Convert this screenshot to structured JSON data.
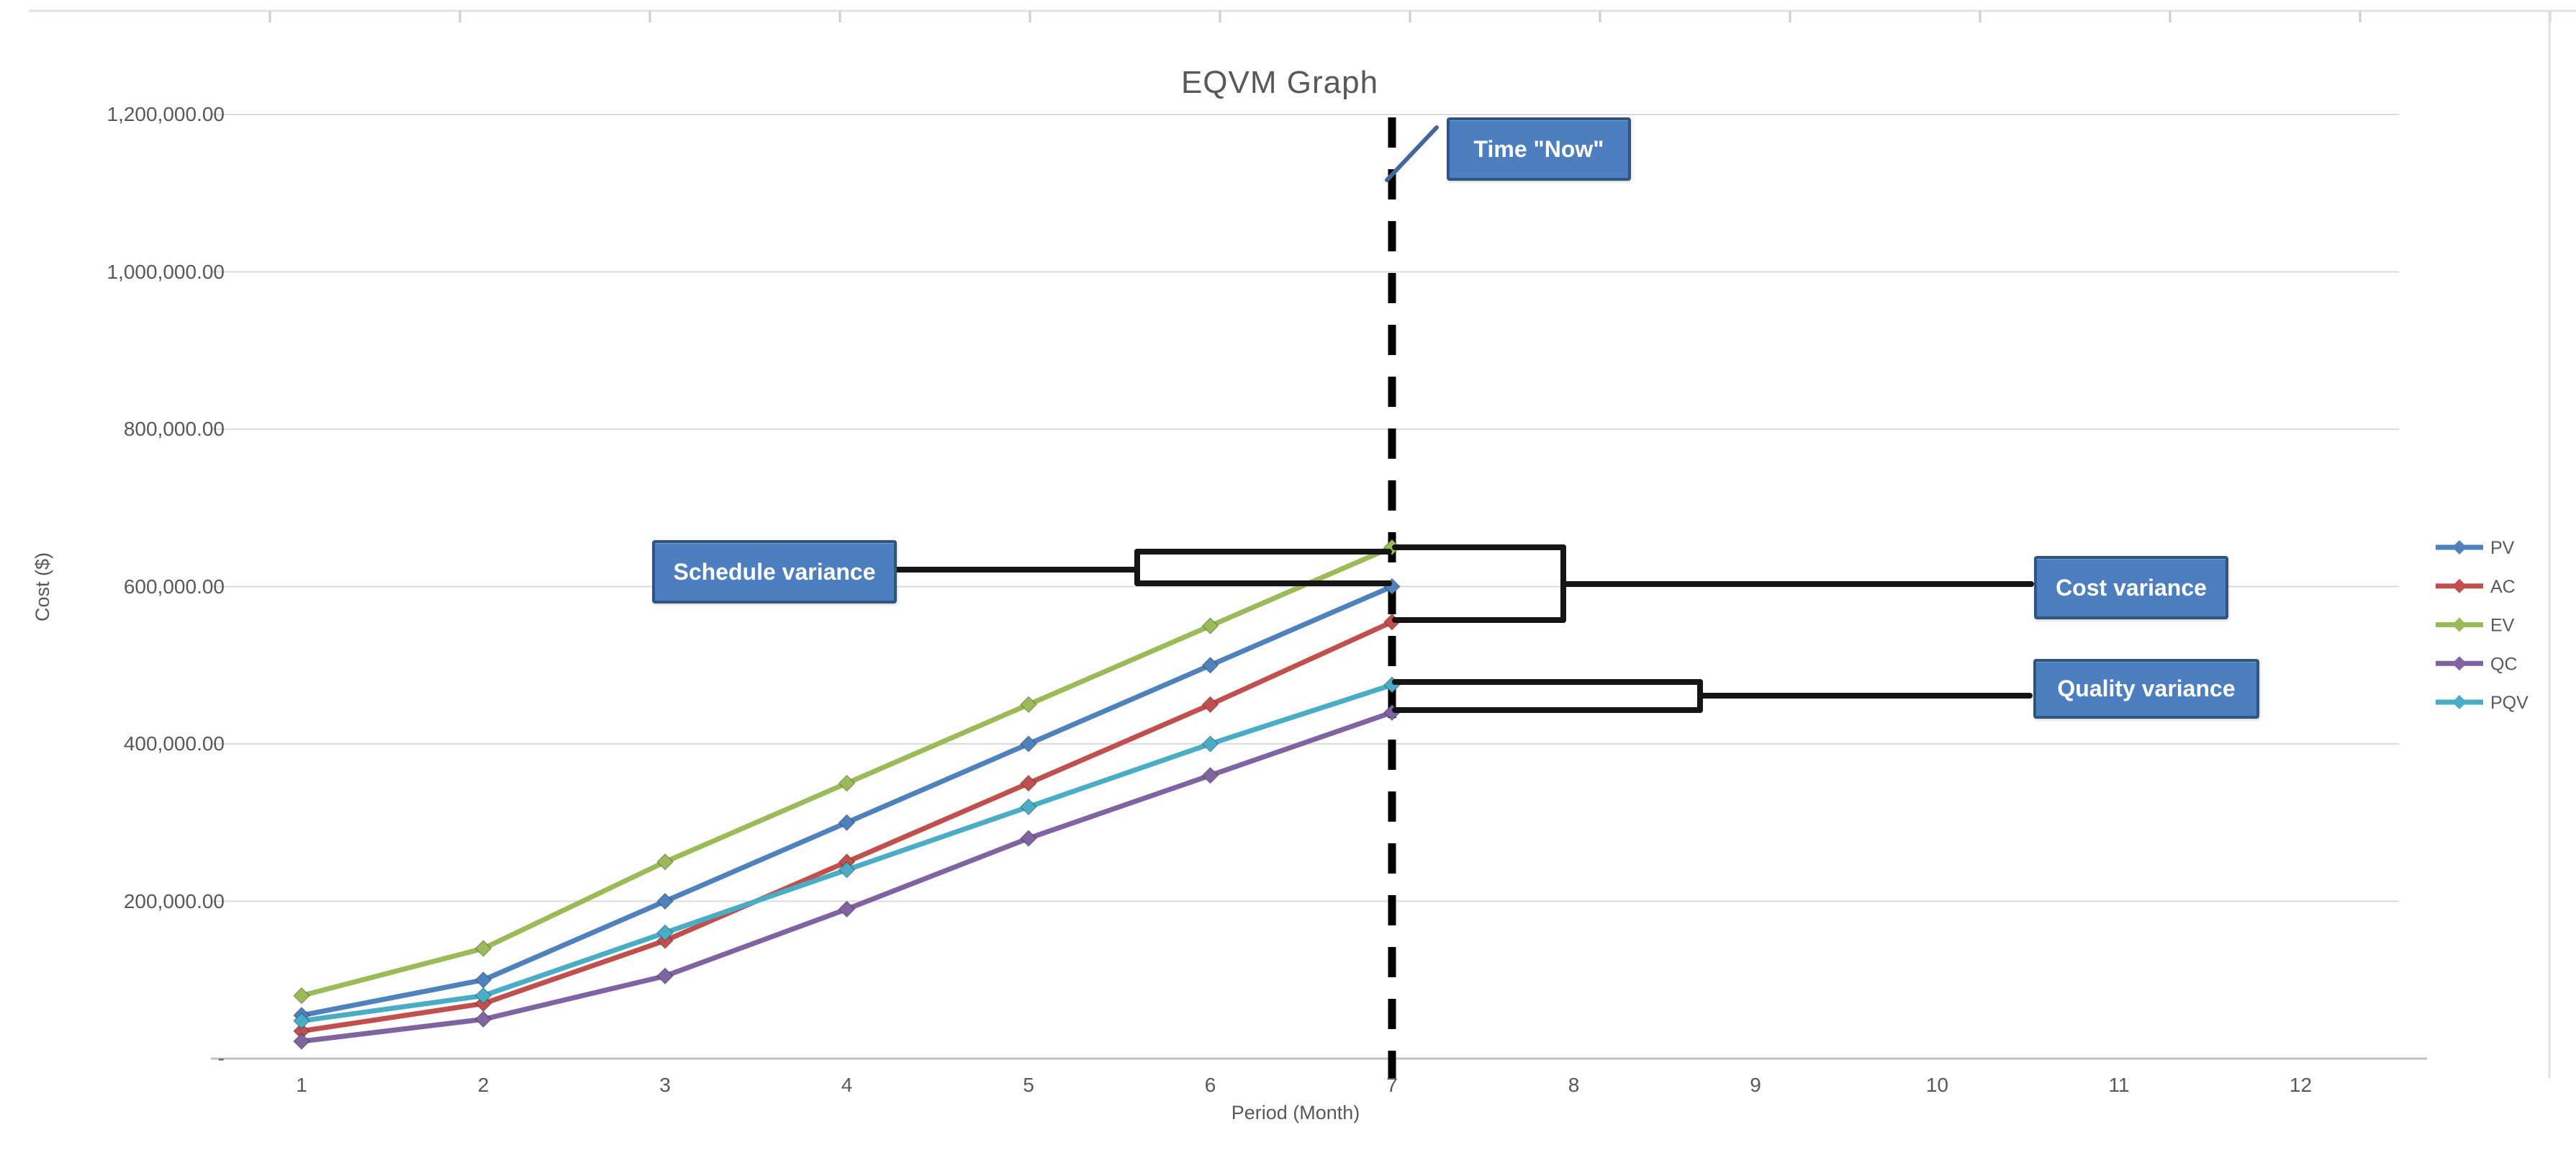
{
  "title": "EQVM Graph",
  "axes": {
    "y_title": "Cost ($)",
    "x_title": "Period (Month)",
    "y_ticks": [
      {
        "label": "1,200,000.00",
        "value": 1200000
      },
      {
        "label": "1,000,000.00",
        "value": 1000000
      },
      {
        "label": "800,000.00",
        "value": 800000
      },
      {
        "label": "600,000.00",
        "value": 600000
      },
      {
        "label": "400,000.00",
        "value": 400000
      },
      {
        "label": "200,000.00",
        "value": 200000
      },
      {
        "label": "-",
        "value": 0
      }
    ],
    "x_ticks": [
      "1",
      "2",
      "3",
      "4",
      "5",
      "6",
      "7",
      "8",
      "9",
      "10",
      "11",
      "12"
    ]
  },
  "legend": [
    {
      "label": "PV",
      "color": "#4F81BD"
    },
    {
      "label": "AC",
      "color": "#C0504D"
    },
    {
      "label": "EV",
      "color": "#9BBB59"
    },
    {
      "label": "QC",
      "color": "#8064A2"
    },
    {
      "label": "PQV",
      "color": "#4BACC6"
    }
  ],
  "annotations": {
    "time_now": "Time \"Now\"",
    "schedule": "Schedule variance",
    "cost": "Cost variance",
    "quality": "Quality variance"
  },
  "style": {
    "callout_fill": "#4D7EBF",
    "callout_border": "#31567E",
    "axis_text": "#595959",
    "grid_color": "#DCDCDC",
    "baseline_color": "#C0C0C0",
    "now_line_color": "#000000",
    "bracket_color": "#151515",
    "pointer_color": "#44679B"
  },
  "chart_data": {
    "type": "line",
    "title": "EQVM Graph",
    "xlabel": "Period (Month)",
    "ylabel": "Cost ($)",
    "x": [
      1,
      2,
      3,
      4,
      5,
      6,
      7
    ],
    "x_axis_range": [
      1,
      12
    ],
    "ylim": [
      0,
      1200000
    ],
    "y_tick_step": 200000,
    "gridlines": true,
    "legend_position": "right",
    "series": [
      {
        "name": "PV",
        "color": "#4F81BD",
        "values": [
          55000,
          100000,
          200000,
          300000,
          400000,
          500000,
          600000
        ]
      },
      {
        "name": "AC",
        "color": "#C0504D",
        "values": [
          35000,
          70000,
          150000,
          250000,
          350000,
          450000,
          555000
        ]
      },
      {
        "name": "EV",
        "color": "#9BBB59",
        "values": [
          80000,
          140000,
          250000,
          350000,
          450000,
          550000,
          650000
        ]
      },
      {
        "name": "QC",
        "color": "#8064A2",
        "values": [
          22000,
          50000,
          105000,
          190000,
          280000,
          360000,
          440000
        ]
      },
      {
        "name": "PQV",
        "color": "#4BACC6",
        "values": [
          48000,
          80000,
          160000,
          240000,
          320000,
          400000,
          475000
        ]
      }
    ],
    "annotations": {
      "now_line_at_month": 7,
      "schedule_variance": {
        "between": [
          "EV",
          "PV"
        ],
        "at_month": 7
      },
      "cost_variance": {
        "between": [
          "EV",
          "AC"
        ],
        "at_month": 7
      },
      "quality_variance": {
        "between": [
          "PQV",
          "QC"
        ],
        "at_month": 7
      }
    }
  }
}
